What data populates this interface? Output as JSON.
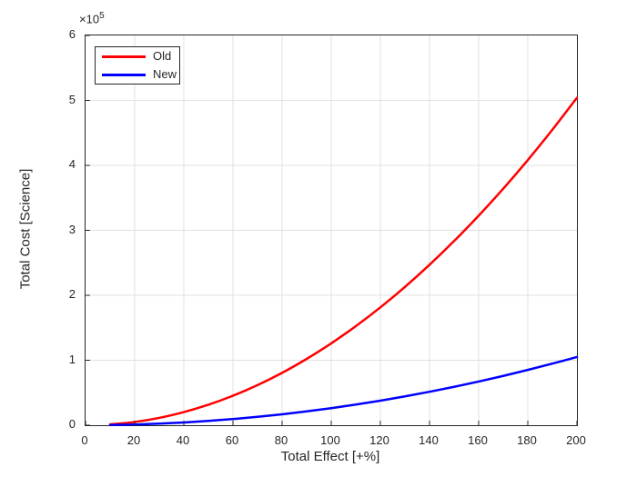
{
  "window": {
    "background": "#ffffff"
  },
  "colors": {
    "axis": "#262626",
    "grid": "#e0e0e0",
    "plot_background": "#ffffff",
    "text": "#262626",
    "legend_border": "#262626",
    "legend_background": "#ffffff"
  },
  "y_exponent": {
    "prefix": "×10",
    "sup": "5"
  },
  "legend": {
    "position": "top-left",
    "items": [
      {
        "label": "Old",
        "color": "#FF0000"
      },
      {
        "label": "New",
        "color": "#0000FF"
      }
    ]
  },
  "chart_data": {
    "type": "line",
    "title": "",
    "xlabel": "Total Effect [+%]",
    "ylabel": "Total Cost [Science]",
    "xlim": [
      0,
      200
    ],
    "ylim": [
      0,
      600000
    ],
    "x_ticks": [
      0,
      20,
      40,
      60,
      80,
      100,
      120,
      140,
      160,
      180,
      200
    ],
    "y_ticks": [
      0,
      100000,
      200000,
      300000,
      400000,
      500000,
      600000
    ],
    "y_tick_labels": [
      "0",
      "1",
      "2",
      "3",
      "4",
      "5",
      "6"
    ],
    "y_axis_multiplier_text": "×10^5",
    "grid": true,
    "legend_position": "top-left",
    "x": [
      10,
      20,
      30,
      40,
      50,
      60,
      70,
      80,
      90,
      100,
      110,
      120,
      130,
      140,
      150,
      160,
      170,
      180,
      190,
      200
    ],
    "series": [
      {
        "name": "Old",
        "color": "#FF0000",
        "line_width": 2.5,
        "values": [
          1300,
          5000,
          11300,
          20200,
          31500,
          45400,
          61700,
          80600,
          102100,
          126000,
          152500,
          181400,
          212900,
          246900,
          283500,
          322600,
          364100,
          408200,
          454900,
          504000
        ]
      },
      {
        "name": "New",
        "color": "#0000FF",
        "line_width": 2.5,
        "values": [
          300,
          1000,
          2400,
          4200,
          6600,
          9500,
          12900,
          16800,
          21300,
          26300,
          31800,
          37800,
          44400,
          51500,
          59100,
          67200,
          75900,
          85100,
          94800,
          105000
        ]
      }
    ]
  }
}
